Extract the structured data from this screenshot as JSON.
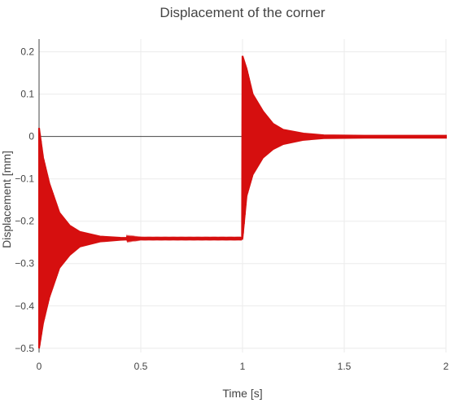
{
  "chart_data": {
    "type": "line",
    "title": "Displacement of the corner",
    "xlabel": "Time [s]",
    "ylabel": "Displacement [mm]",
    "xlim": [
      0,
      2
    ],
    "ylim": [
      -0.51,
      0.23
    ],
    "x_ticks": [
      0,
      0.5,
      1,
      1.5,
      2
    ],
    "x_tick_labels": [
      "0",
      "0.5",
      "1",
      "1.5",
      "2"
    ],
    "y_ticks": [
      -0.5,
      -0.4,
      -0.3,
      -0.2,
      -0.1,
      0,
      0.1,
      0.2
    ],
    "y_tick_labels": [
      "−0.5",
      "−0.4",
      "−0.3",
      "−0.2",
      "−0.1",
      "0",
      "0.1",
      "0.2"
    ],
    "grid": true,
    "zero_line": true,
    "series": [
      {
        "color": "#d60f0f",
        "envelope": [
          {
            "t": 0.0,
            "min": -0.5,
            "max": 0.02
          },
          {
            "t": 0.02,
            "min": -0.44,
            "max": -0.05
          },
          {
            "t": 0.05,
            "min": -0.38,
            "max": -0.11
          },
          {
            "t": 0.1,
            "min": -0.31,
            "max": -0.18
          },
          {
            "t": 0.15,
            "min": -0.28,
            "max": -0.21
          },
          {
            "t": 0.2,
            "min": -0.26,
            "max": -0.225
          },
          {
            "t": 0.3,
            "min": -0.248,
            "max": -0.236
          },
          {
            "t": 0.4,
            "min": -0.244,
            "max": -0.239
          },
          {
            "t": 0.5,
            "min": -0.242,
            "max": -0.24
          },
          {
            "t": 0.8,
            "min": -0.242,
            "max": -0.24
          },
          {
            "t": 0.999,
            "min": -0.242,
            "max": -0.24
          },
          {
            "t": 1.0,
            "min": -0.24,
            "max": 0.19
          },
          {
            "t": 1.02,
            "min": -0.14,
            "max": 0.16
          },
          {
            "t": 1.05,
            "min": -0.09,
            "max": 0.1
          },
          {
            "t": 1.1,
            "min": -0.05,
            "max": 0.06
          },
          {
            "t": 1.15,
            "min": -0.03,
            "max": 0.03
          },
          {
            "t": 1.2,
            "min": -0.018,
            "max": 0.016
          },
          {
            "t": 1.3,
            "min": -0.008,
            "max": 0.007
          },
          {
            "t": 1.4,
            "min": -0.004,
            "max": 0.003
          },
          {
            "t": 1.6,
            "min": -0.003,
            "max": 0.002
          },
          {
            "t": 2.0,
            "min": -0.003,
            "max": 0.002
          }
        ]
      }
    ]
  }
}
